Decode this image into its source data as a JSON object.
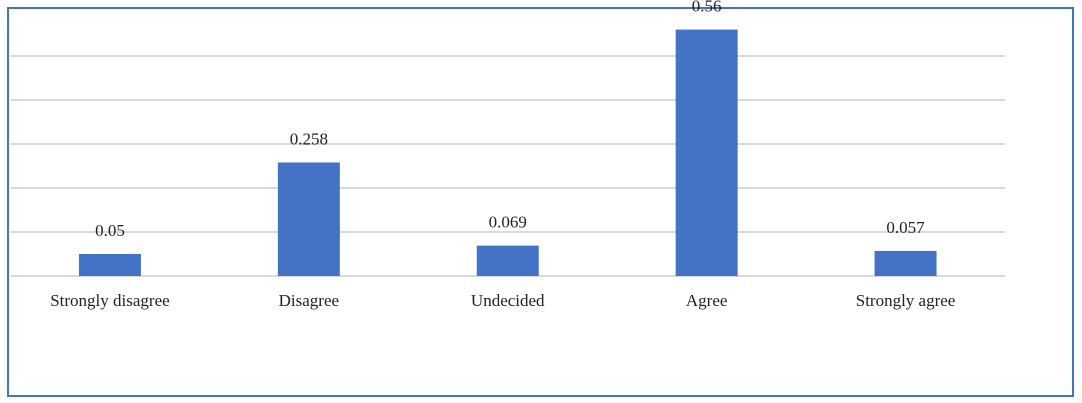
{
  "chart_data": {
    "type": "bar",
    "categories": [
      "Strongly disagree",
      "Disagree",
      "Undecided",
      "Agree",
      "Strongly agree"
    ],
    "values": [
      0.05,
      0.258,
      0.069,
      0.56,
      0.057
    ],
    "color": "#4472c4",
    "ylim": [
      0,
      0.6
    ],
    "yticks": [
      0,
      0.1,
      0.2,
      0.3,
      0.4,
      0.5
    ],
    "grid": true
  }
}
